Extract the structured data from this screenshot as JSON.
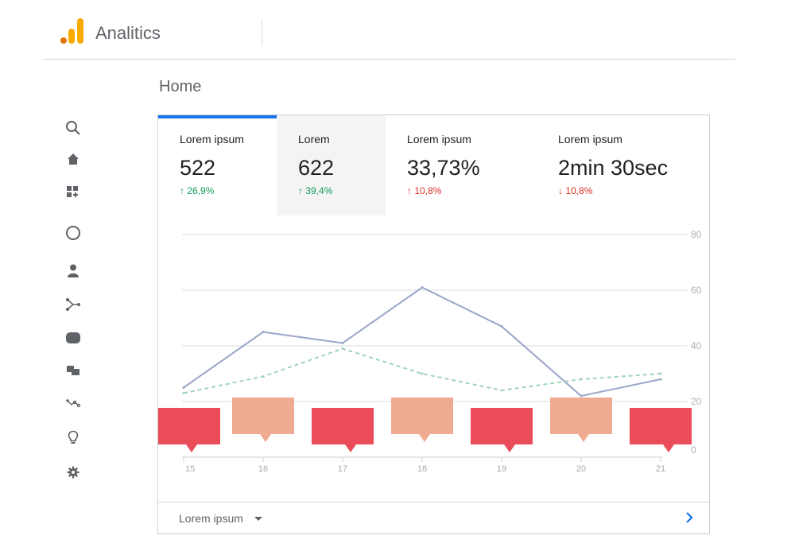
{
  "header": {
    "app_title": "Analitics",
    "logo_icon": "analytics-logo-icon"
  },
  "page": {
    "title": "Home"
  },
  "sidebar": {
    "items": [
      {
        "icon": "search-icon"
      },
      {
        "icon": "home-icon"
      },
      {
        "icon": "customize-dashboard-icon"
      },
      {
        "icon": "realtime-icon"
      },
      {
        "icon": "audience-icon"
      },
      {
        "icon": "acquisition-icon"
      },
      {
        "icon": "behavior-icon"
      },
      {
        "icon": "conversions-icon"
      },
      {
        "icon": "attribution-icon"
      },
      {
        "icon": "discover-icon"
      },
      {
        "icon": "admin-icon"
      }
    ]
  },
  "tabs": [
    {
      "label": "Lorem ipsum",
      "value": "522",
      "change": "↑ 26,9%",
      "direction": "up"
    },
    {
      "label": "Lorem",
      "value": "622",
      "change": "↑ 39,4%",
      "direction": "up"
    },
    {
      "label": "Lorem ipsum",
      "value": "33,73%",
      "change": "↑ 10,8%",
      "direction": "down"
    },
    {
      "label": "Lorem ipsum",
      "value": "2min 30sec",
      "change": "↓ 10,8%",
      "direction": "down"
    }
  ],
  "chart_data": {
    "type": "line",
    "x": [
      "15",
      "16",
      "17",
      "18",
      "19",
      "20",
      "21"
    ],
    "ylim": [
      0,
      80
    ],
    "y_ticks": [
      "0",
      "20",
      "40",
      "60",
      "80"
    ],
    "grid": true,
    "series": [
      {
        "values": [
          25,
          45,
          41,
          61,
          47,
          22,
          28
        ],
        "color": "#9aa5c8",
        "style": "solid"
      },
      {
        "values": [
          23,
          29,
          39,
          30,
          24,
          28,
          30
        ],
        "color": "#9fd3c0",
        "style": "dashed"
      }
    ],
    "annotations": [
      {
        "x": "15",
        "color": "#ea4c5a",
        "pointer": "down"
      },
      {
        "x": "16",
        "color": "#efab91",
        "pointer": "down"
      },
      {
        "x": "17",
        "color": "#ea4c5a",
        "pointer": "down"
      },
      {
        "x": "18",
        "color": "#efab91",
        "pointer": "down"
      },
      {
        "x": "19",
        "color": "#ea4c5a",
        "pointer": "down"
      },
      {
        "x": "20",
        "color": "#efab91",
        "pointer": "down"
      },
      {
        "x": "21",
        "color": "#ea4c5a",
        "pointer": "down"
      }
    ]
  },
  "footer": {
    "select_label": "Lorem ipsum",
    "next_icon": "chevron-right-icon"
  },
  "colors": {
    "accent": "#1a73e8",
    "up": "#0f9d58",
    "down": "#d93025"
  }
}
